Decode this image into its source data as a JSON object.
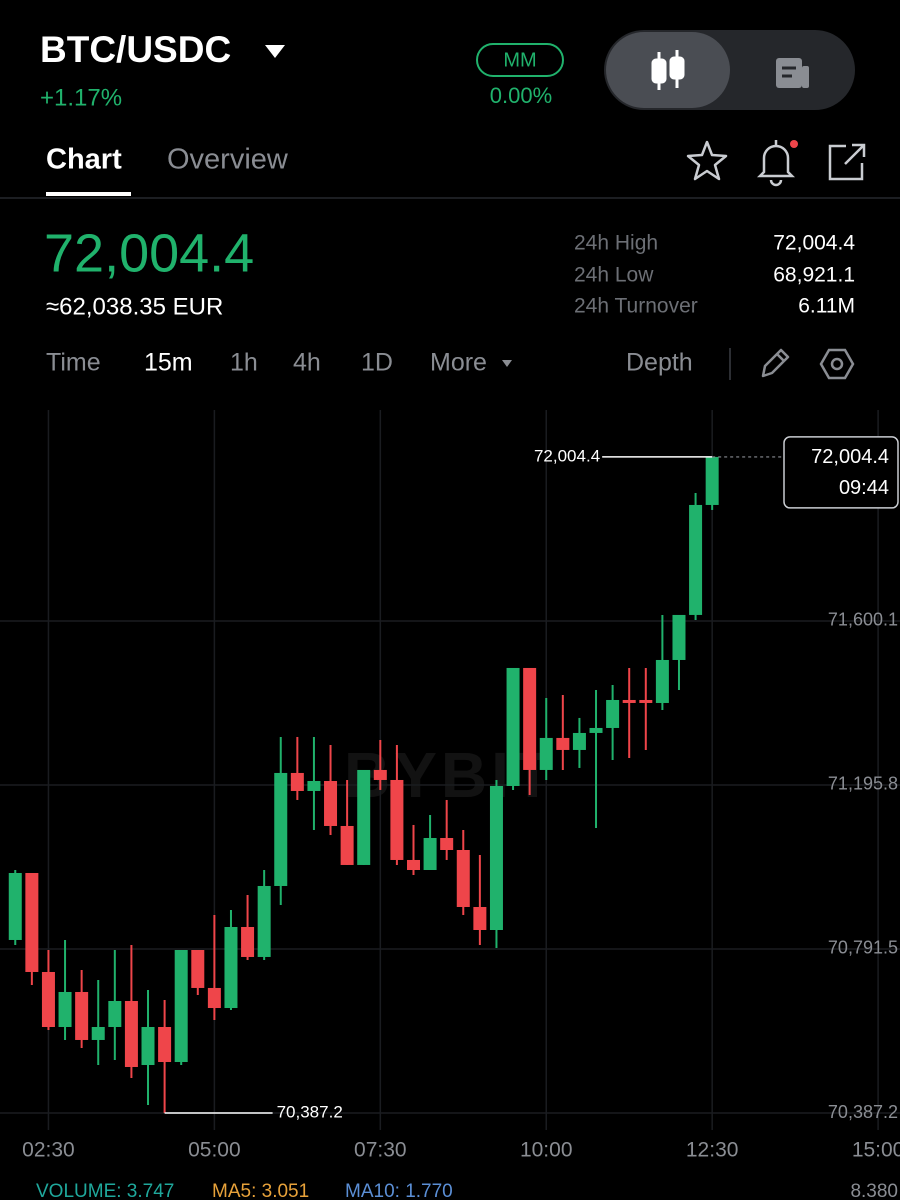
{
  "header": {
    "pair": "BTC/USDC",
    "change": "+1.17%",
    "mm_label": "MM",
    "mm_value": "0.00%"
  },
  "tabs": [
    "Chart",
    "Overview"
  ],
  "ticker": {
    "price": "72,004.4",
    "fiat": "≈62,038.35 EUR",
    "stats": [
      {
        "label": "24h High",
        "value": "72,004.4"
      },
      {
        "label": "24h Low",
        "value": "68,921.1"
      },
      {
        "label": "24h Turnover",
        "value": "6.11M"
      }
    ]
  },
  "intervals": [
    "Time",
    "15m",
    "1h",
    "4h",
    "1D",
    "More"
  ],
  "depth": "Depth",
  "chart_data": {
    "type": "candlestick",
    "watermark": "BYBIT",
    "x": [
      2,
      2.25,
      2.5,
      2.75,
      3,
      3.25,
      3.5,
      3.75,
      4,
      4.25,
      4.5,
      4.75,
      5,
      5.25,
      5.5,
      5.75,
      6,
      6.25,
      6.5,
      6.75,
      7,
      7.25,
      7.5,
      7.75,
      8,
      8.25,
      8.5,
      8.75,
      9,
      9.25,
      9.5,
      9.75,
      10,
      10.25,
      10.5,
      10.75,
      11,
      11.25,
      11.5,
      11.75,
      12,
      12.25,
      12.5
    ],
    "open": [
      70813.7,
      70978.8,
      70734.8,
      70599.2,
      70685.5,
      70567.2,
      70599.2,
      70663.3,
      70505.5,
      70599.2,
      70512.9,
      70789.0,
      70695.4,
      70646.0,
      70845.7,
      70771.8,
      70946.8,
      71225.4,
      71181.0,
      71205.6,
      71094.7,
      70998.6,
      71232.8,
      71208.1,
      71010.9,
      70986.2,
      71065.1,
      71035.5,
      70895.0,
      70838.3,
      71193.3,
      71484.2,
      71232.8,
      71311.7,
      71282.1,
      71324.0,
      71336.3,
      71405.3,
      71405.3,
      71397.9,
      71503.9,
      71614.9,
      71886.0
    ],
    "high": [
      70986.2,
      70978.8,
      70789.0,
      70813.7,
      70739.7,
      70715.1,
      70789.0,
      70801.4,
      70690.4,
      70665.8,
      70789.0,
      70789.0,
      70875.3,
      70887.6,
      70924.6,
      70986.2,
      71314.1,
      71314.1,
      71314.1,
      71294.4,
      71208.1,
      71232.8,
      71306.7,
      71294.4,
      71097.2,
      71121.8,
      71158.8,
      71084.8,
      71023.2,
      71208.1,
      71484.2,
      71484.2,
      71410.3,
      71417.7,
      71361.0,
      71430.0,
      71442.3,
      71484.2,
      71484.2,
      71614.9,
      71614.9,
      71915.6,
      72004.4
    ],
    "low": [
      70801.4,
      70702.7,
      70591.8,
      70567.2,
      70547.4,
      70505.5,
      70517.9,
      70473.5,
      70406.9,
      70387.2,
      70505.5,
      70678.1,
      70616.5,
      70641.1,
      70764.4,
      70764.4,
      70900.0,
      71158.8,
      71084.8,
      71072.5,
      70998.6,
      70998.6,
      71183.5,
      70998.6,
      70973.9,
      70986.2,
      71010.9,
      70875.3,
      70801.4,
      70794.0,
      71183.5,
      71171.1,
      71208.1,
      71232.8,
      71237.7,
      71089.8,
      71257.4,
      71262.3,
      71282.1,
      71380.7,
      71430.0,
      71602.5,
      71873.7
    ],
    "close": [
      70978.8,
      70734.8,
      70599.2,
      70685.5,
      70567.2,
      70599.2,
      70663.3,
      70500.6,
      70599.2,
      70512.9,
      70789.0,
      70695.4,
      70646.0,
      70845.7,
      70771.8,
      70946.8,
      71225.4,
      71181.0,
      71205.6,
      71094.7,
      70998.6,
      71232.8,
      71208.1,
      71010.9,
      70986.2,
      71065.1,
      71035.5,
      70895.0,
      70838.3,
      71193.3,
      71484.2,
      71232.8,
      71311.7,
      71282.1,
      71324.0,
      71336.3,
      71405.3,
      71397.9,
      71397.9,
      71503.9,
      71614.9,
      71886.0,
      72004.4
    ],
    "colors": {
      "up": "#20b26c",
      "down": "#ef454a"
    },
    "xlim": [
      1.77,
      15.33
    ],
    "ylim": [
      70345.3,
      72120.1
    ],
    "xticks": [
      {
        "value": 2.5,
        "label": "02:30"
      },
      {
        "value": 5,
        "label": "05:00"
      },
      {
        "value": 7.5,
        "label": "07:30"
      },
      {
        "value": 10,
        "label": "10:00"
      },
      {
        "value": 12.5,
        "label": "12:30"
      },
      {
        "value": 15,
        "label": "15:00"
      }
    ],
    "yticks": [
      {
        "value": 70387.2,
        "label": "70,387.2"
      },
      {
        "value": 70791.5,
        "label": "70,791.5"
      },
      {
        "value": 71195.8,
        "label": "71,195.8"
      },
      {
        "value": 71600.1,
        "label": "71,600.1"
      }
    ],
    "grid": true,
    "max_label": "72,004.4",
    "min_label": "70,387.2",
    "last_price": {
      "label": "72,004.4",
      "time": "09:44"
    }
  },
  "volume_bar": {
    "volume": "VOLUME: 3.747",
    "ma5": "MA5: 3.051",
    "ma10": "MA10: 1.770",
    "right": "8.380"
  }
}
